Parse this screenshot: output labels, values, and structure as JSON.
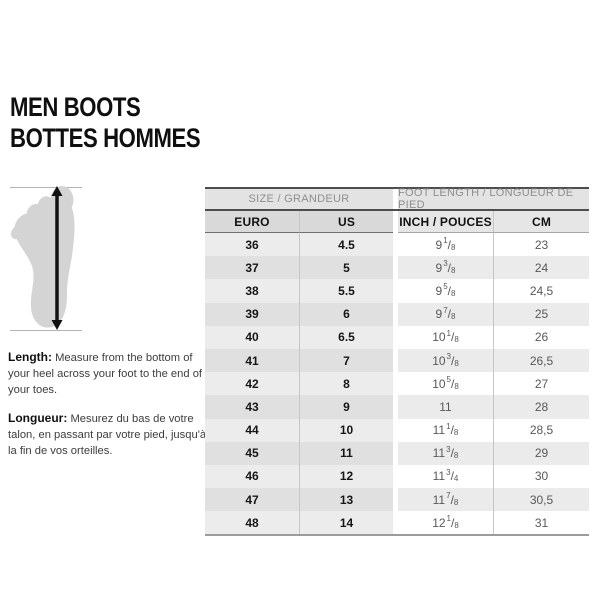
{
  "header": {
    "title_en": "MEN BOOTS",
    "title_fr": "BOTTES HOMMES"
  },
  "instructions": {
    "length_label": "Length:",
    "length_text": "Measure from the bottom of your heel across your foot to the end of your toes.",
    "longueur_label": "Longueur:",
    "longueur_text": "Mesurez du bas de votre talon, en passant par votre pied, jusqu'à la fin de vos orteilles."
  },
  "table": {
    "group_headers": [
      "SIZE / GRANDEUR",
      "FOOT LENGTH / LONGUEUR DE PIED"
    ],
    "columns": [
      "EURO",
      "US",
      "INCH / POUCES",
      "CM"
    ],
    "rows": [
      {
        "euro": "36",
        "us": "4.5",
        "inch": "9 1/8",
        "cm": "23"
      },
      {
        "euro": "37",
        "us": "5",
        "inch": "9 3/8",
        "cm": "24"
      },
      {
        "euro": "38",
        "us": "5.5",
        "inch": "9 5/8",
        "cm": "24,5"
      },
      {
        "euro": "39",
        "us": "6",
        "inch": "9 7/8",
        "cm": "25"
      },
      {
        "euro": "40",
        "us": "6.5",
        "inch": "10 1/8",
        "cm": "26"
      },
      {
        "euro": "41",
        "us": "7",
        "inch": "10 3/8",
        "cm": "26,5"
      },
      {
        "euro": "42",
        "us": "8",
        "inch": "10 5/8",
        "cm": "27"
      },
      {
        "euro": "43",
        "us": "9",
        "inch": "11",
        "cm": "28"
      },
      {
        "euro": "44",
        "us": "10",
        "inch": "11 1/8",
        "cm": "28,5"
      },
      {
        "euro": "45",
        "us": "11",
        "inch": "11 3/8",
        "cm": "29"
      },
      {
        "euro": "46",
        "us": "12",
        "inch": "11 3/4",
        "cm": "30"
      },
      {
        "euro": "47",
        "us": "13",
        "inch": "11 7/8",
        "cm": "30,5"
      },
      {
        "euro": "48",
        "us": "14",
        "inch": "12 1/8",
        "cm": "31"
      }
    ]
  },
  "icons": {
    "foot_diagram": "foot-measurement-icon"
  },
  "colors": {
    "group_header_bg": "#e3e3e3",
    "group_header_text": "#8e8e8e",
    "col_header_bg_left": "#d9d9d9",
    "col_header_bg_right": "#e6e6e6",
    "stripe_left_light": "#ececec",
    "stripe_left_dark": "#e0e0e0",
    "stripe_right_light": "#ffffff",
    "stripe_right_dark": "#ebebeb",
    "border_dark": "#4d4d4d",
    "border_bottom": "#9c9c9c",
    "body_text_muted": "#58585a",
    "foot_fill": "#d4d4d4"
  }
}
